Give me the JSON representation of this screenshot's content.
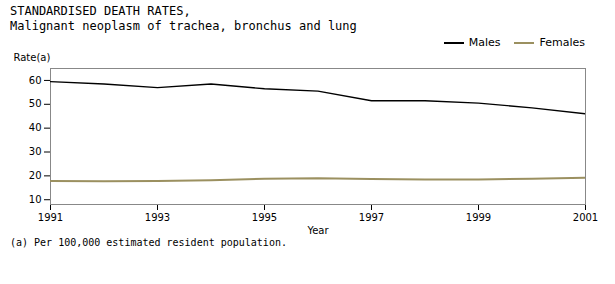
{
  "chart_data": {
    "type": "line",
    "title": "STANDARDISED DEATH RATES,",
    "subtitle": "Malignant neoplasm of trachea, bronchus and lung",
    "xlabel": "Year",
    "ylabel": "Rate(a)",
    "caption": "(a) Per 100,000 estimated resident population.",
    "x": [
      1991,
      1992,
      1993,
      1994,
      1995,
      1996,
      1997,
      1998,
      1999,
      2000,
      2001
    ],
    "series": [
      {
        "name": "Males",
        "color": "#000000",
        "values": [
          59.5,
          58.5,
          57.0,
          58.5,
          56.5,
          55.5,
          51.5,
          51.5,
          50.5,
          48.5,
          46.0
        ]
      },
      {
        "name": "Females",
        "color": "#9b9060",
        "values": [
          17.8,
          17.7,
          17.8,
          18.2,
          18.8,
          19.0,
          18.7,
          18.5,
          18.5,
          18.8,
          19.2
        ]
      }
    ],
    "xlim": [
      1991,
      2001
    ],
    "xticks": [
      1991,
      1993,
      1995,
      1997,
      1999,
      2001
    ],
    "ylim": [
      8,
      65
    ],
    "yticks": [
      10,
      20,
      30,
      40,
      50,
      60
    ],
    "legend": "upper right",
    "grid": false
  }
}
